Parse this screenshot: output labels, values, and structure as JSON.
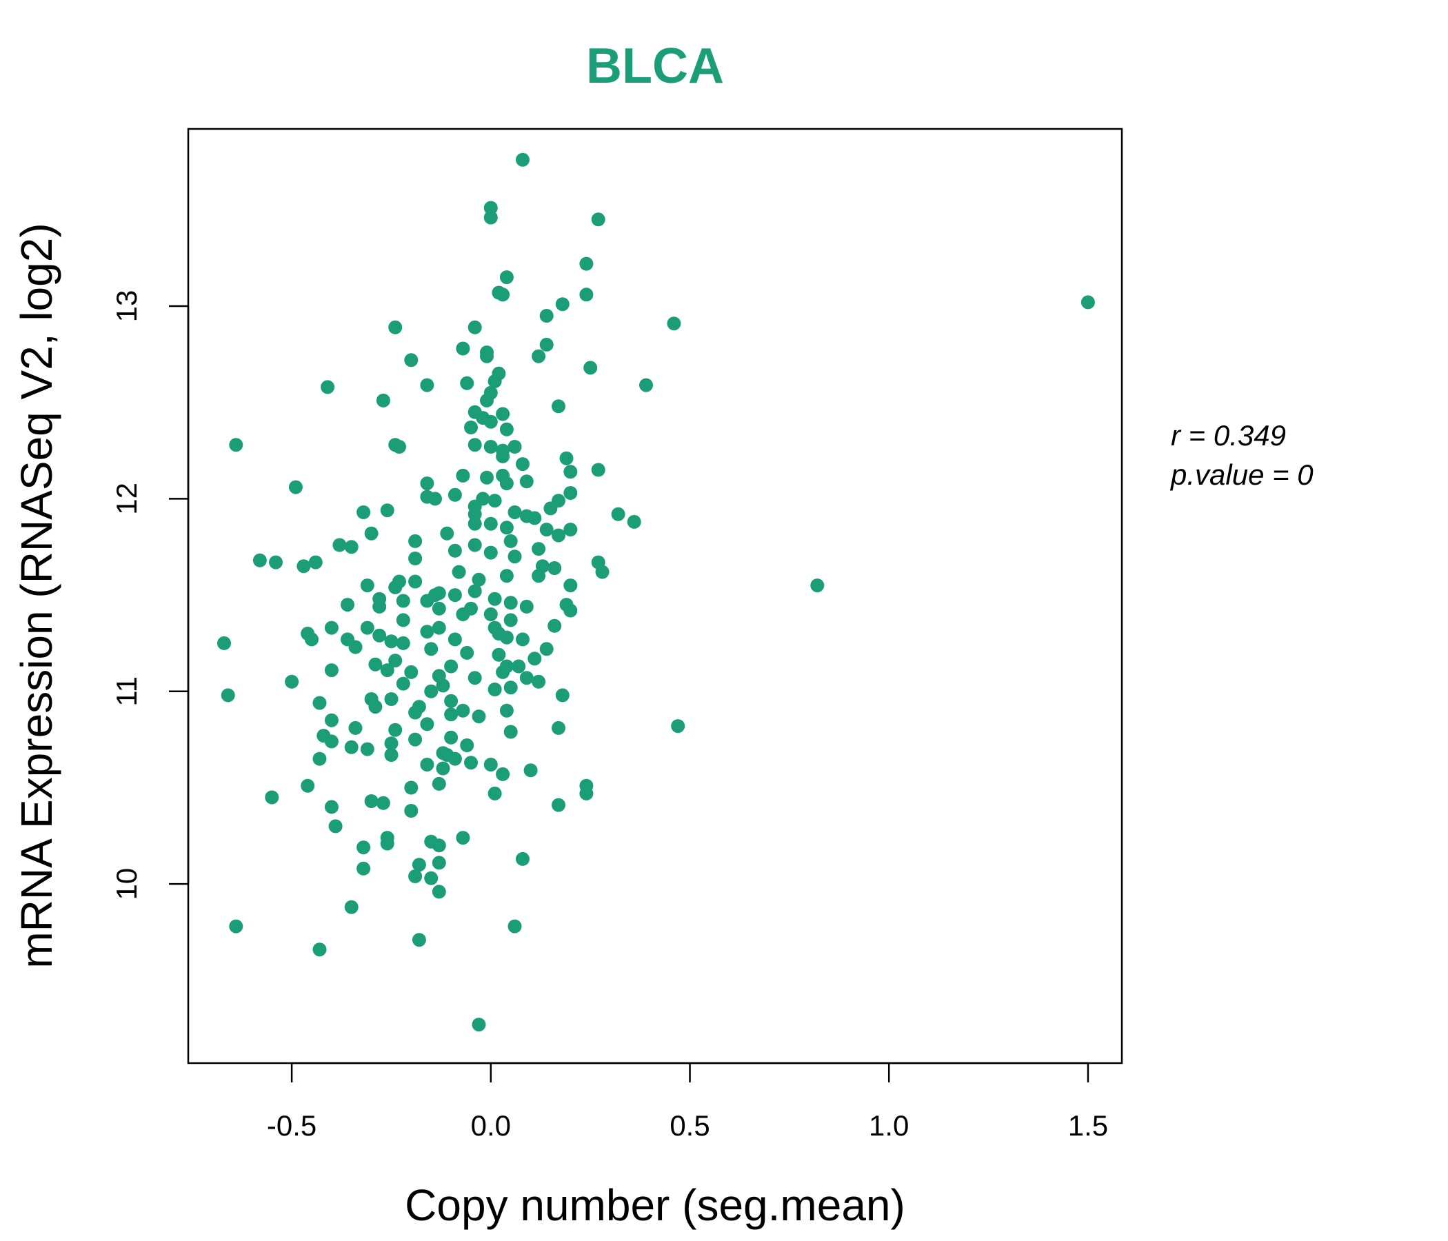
{
  "colors": {
    "accent": "#1b9e77",
    "axis": "#000000"
  },
  "stats": {
    "r_line": "r = 0.349",
    "p_line": "p.value = 0"
  },
  "chart_data": {
    "type": "scatter",
    "title": "BLCA",
    "xlabel": "Copy number (seg.mean)",
    "ylabel": "mRNA Expression (RNASeq V2, log2)",
    "xlim": [
      -0.76,
      1.585
    ],
    "ylim": [
      9.07,
      13.92
    ],
    "xticks": [
      -0.5,
      0.0,
      0.5,
      1.0,
      1.5
    ],
    "xtick_labels": [
      "-0.5",
      "0.0",
      "0.5",
      "1.0",
      "1.5"
    ],
    "yticks": [
      10,
      11,
      12,
      13
    ],
    "ytick_labels": [
      "10",
      "11",
      "12",
      "13"
    ],
    "grid": false,
    "legend": "none",
    "points": [
      [
        0.08,
        13.76
      ],
      [
        0.0,
        13.51
      ],
      [
        0.0,
        13.46
      ],
      [
        0.27,
        13.45
      ],
      [
        0.24,
        13.22
      ],
      [
        0.04,
        13.15
      ],
      [
        0.03,
        13.06
      ],
      [
        0.02,
        13.07
      ],
      [
        0.24,
        13.06
      ],
      [
        0.18,
        13.01
      ],
      [
        0.14,
        12.95
      ],
      [
        1.5,
        13.02
      ],
      [
        0.46,
        12.91
      ],
      [
        -0.24,
        12.89
      ],
      [
        -0.04,
        12.89
      ],
      [
        0.14,
        12.8
      ],
      [
        -0.07,
        12.78
      ],
      [
        -0.01,
        12.76
      ],
      [
        -0.01,
        12.74
      ],
      [
        0.12,
        12.74
      ],
      [
        -0.2,
        12.72
      ],
      [
        0.25,
        12.68
      ],
      [
        0.02,
        12.65
      ],
      [
        0.01,
        12.61
      ],
      [
        -0.06,
        12.6
      ],
      [
        0.39,
        12.59
      ],
      [
        -0.16,
        12.59
      ],
      [
        -0.41,
        12.58
      ],
      [
        0.0,
        12.55
      ],
      [
        -0.27,
        12.51
      ],
      [
        -0.01,
        12.51
      ],
      [
        0.17,
        12.48
      ],
      [
        -0.04,
        12.45
      ],
      [
        0.03,
        12.44
      ],
      [
        -0.02,
        12.42
      ],
      [
        0.0,
        12.4
      ],
      [
        -0.05,
        12.37
      ],
      [
        0.04,
        12.36
      ],
      [
        -0.64,
        12.28
      ],
      [
        -0.24,
        12.28
      ],
      [
        -0.23,
        12.27
      ],
      [
        -0.04,
        12.28
      ],
      [
        0.0,
        12.27
      ],
      [
        0.03,
        12.25
      ],
      [
        0.06,
        12.27
      ],
      [
        0.03,
        12.22
      ],
      [
        0.19,
        12.21
      ],
      [
        0.08,
        12.18
      ],
      [
        0.27,
        12.15
      ],
      [
        0.2,
        12.14
      ],
      [
        -0.07,
        12.12
      ],
      [
        -0.01,
        12.11
      ],
      [
        0.03,
        12.12
      ],
      [
        0.04,
        12.08
      ],
      [
        0.09,
        12.09
      ],
      [
        -0.16,
        12.08
      ],
      [
        -0.49,
        12.06
      ],
      [
        -0.09,
        12.02
      ],
      [
        -0.16,
        12.01
      ],
      [
        -0.14,
        12.0
      ],
      [
        -0.02,
        12.0
      ],
      [
        0.01,
        11.99
      ],
      [
        0.17,
        11.99
      ],
      [
        -0.04,
        11.96
      ],
      [
        0.15,
        11.95
      ],
      [
        0.2,
        12.03
      ],
      [
        -0.32,
        11.93
      ],
      [
        -0.26,
        11.94
      ],
      [
        0.32,
        11.92
      ],
      [
        -0.04,
        11.92
      ],
      [
        0.06,
        11.93
      ],
      [
        0.09,
        11.91
      ],
      [
        0.11,
        11.9
      ],
      [
        0.36,
        11.88
      ],
      [
        -0.04,
        11.87
      ],
      [
        0.0,
        11.87
      ],
      [
        0.04,
        11.85
      ],
      [
        0.14,
        11.84
      ],
      [
        0.2,
        11.84
      ],
      [
        -0.3,
        11.82
      ],
      [
        -0.11,
        11.82
      ],
      [
        0.17,
        11.81
      ],
      [
        -0.19,
        11.78
      ],
      [
        -0.38,
        11.76
      ],
      [
        -0.35,
        11.75
      ],
      [
        -0.04,
        11.76
      ],
      [
        0.05,
        11.78
      ],
      [
        0.12,
        11.74
      ],
      [
        -0.09,
        11.73
      ],
      [
        0.0,
        11.72
      ],
      [
        0.06,
        11.7
      ],
      [
        -0.19,
        11.69
      ],
      [
        -0.58,
        11.68
      ],
      [
        0.27,
        11.67
      ],
      [
        -0.44,
        11.67
      ],
      [
        -0.54,
        11.67
      ],
      [
        -0.47,
        11.65
      ],
      [
        0.13,
        11.65
      ],
      [
        0.16,
        11.64
      ],
      [
        0.28,
        11.62
      ],
      [
        -0.08,
        11.62
      ],
      [
        0.04,
        11.6
      ],
      [
        0.12,
        11.6
      ],
      [
        -0.03,
        11.58
      ],
      [
        -0.23,
        11.57
      ],
      [
        -0.19,
        11.57
      ],
      [
        -0.31,
        11.55
      ],
      [
        0.82,
        11.55
      ],
      [
        0.2,
        11.55
      ],
      [
        -0.24,
        11.54
      ],
      [
        -0.04,
        11.52
      ],
      [
        -0.13,
        11.51
      ],
      [
        -0.14,
        11.5
      ],
      [
        -0.09,
        11.5
      ],
      [
        -0.28,
        11.48
      ],
      [
        -0.22,
        11.47
      ],
      [
        -0.16,
        11.47
      ],
      [
        0.01,
        11.48
      ],
      [
        0.05,
        11.46
      ],
      [
        -0.36,
        11.45
      ],
      [
        -0.28,
        11.44
      ],
      [
        0.09,
        11.44
      ],
      [
        0.19,
        11.45
      ],
      [
        -0.13,
        11.43
      ],
      [
        -0.05,
        11.43
      ],
      [
        0.2,
        11.42
      ],
      [
        -0.07,
        11.4
      ],
      [
        0.0,
        11.4
      ],
      [
        0.05,
        11.37
      ],
      [
        -0.22,
        11.37
      ],
      [
        -0.4,
        11.33
      ],
      [
        0.16,
        11.34
      ],
      [
        -0.13,
        11.33
      ],
      [
        0.01,
        11.33
      ],
      [
        -0.31,
        11.33
      ],
      [
        -0.46,
        11.3
      ],
      [
        -0.16,
        11.31
      ],
      [
        -0.28,
        11.29
      ],
      [
        0.02,
        11.3
      ],
      [
        0.04,
        11.28
      ],
      [
        -0.45,
        11.27
      ],
      [
        -0.36,
        11.27
      ],
      [
        -0.25,
        11.26
      ],
      [
        -0.22,
        11.25
      ],
      [
        -0.09,
        11.27
      ],
      [
        0.08,
        11.27
      ],
      [
        -0.67,
        11.25
      ],
      [
        -0.34,
        11.23
      ],
      [
        0.14,
        11.22
      ],
      [
        -0.15,
        11.22
      ],
      [
        -0.06,
        11.2
      ],
      [
        0.02,
        11.19
      ],
      [
        0.11,
        11.17
      ],
      [
        -0.24,
        11.16
      ],
      [
        -0.29,
        11.14
      ],
      [
        -0.1,
        11.13
      ],
      [
        0.04,
        11.13
      ],
      [
        0.07,
        11.13
      ],
      [
        -0.26,
        11.11
      ],
      [
        -0.4,
        11.11
      ],
      [
        -0.2,
        11.1
      ],
      [
        0.03,
        11.1
      ],
      [
        -0.13,
        11.08
      ],
      [
        -0.04,
        11.07
      ],
      [
        0.09,
        11.07
      ],
      [
        0.12,
        11.05
      ],
      [
        -0.22,
        11.04
      ],
      [
        -0.5,
        11.05
      ],
      [
        -0.12,
        11.03
      ],
      [
        0.05,
        11.02
      ],
      [
        0.01,
        11.01
      ],
      [
        -0.15,
        11.0
      ],
      [
        0.18,
        10.98
      ],
      [
        -0.66,
        10.98
      ],
      [
        -0.3,
        10.96
      ],
      [
        -0.25,
        10.96
      ],
      [
        -0.1,
        10.95
      ],
      [
        -0.43,
        10.94
      ],
      [
        -0.18,
        10.92
      ],
      [
        -0.29,
        10.92
      ],
      [
        -0.07,
        10.9
      ],
      [
        0.04,
        10.9
      ],
      [
        -0.19,
        10.89
      ],
      [
        -0.1,
        10.88
      ],
      [
        -0.03,
        10.87
      ],
      [
        -0.4,
        10.85
      ],
      [
        -0.16,
        10.83
      ],
      [
        0.47,
        10.82
      ],
      [
        0.17,
        10.81
      ],
      [
        -0.34,
        10.81
      ],
      [
        -0.24,
        10.8
      ],
      [
        0.05,
        10.79
      ],
      [
        -0.42,
        10.77
      ],
      [
        -0.1,
        10.76
      ],
      [
        -0.19,
        10.75
      ],
      [
        -0.4,
        10.74
      ],
      [
        -0.25,
        10.73
      ],
      [
        -0.06,
        10.72
      ],
      [
        -0.35,
        10.71
      ],
      [
        -0.31,
        10.7
      ],
      [
        -0.12,
        10.68
      ],
      [
        -0.25,
        10.67
      ],
      [
        -0.11,
        10.67
      ],
      [
        -0.09,
        10.65
      ],
      [
        -0.43,
        10.65
      ],
      [
        -0.05,
        10.63
      ],
      [
        0.0,
        10.62
      ],
      [
        -0.16,
        10.62
      ],
      [
        -0.12,
        10.6
      ],
      [
        0.1,
        10.59
      ],
      [
        0.03,
        10.57
      ],
      [
        -0.13,
        10.52
      ],
      [
        -0.46,
        10.51
      ],
      [
        -0.2,
        10.5
      ],
      [
        0.24,
        10.51
      ],
      [
        0.24,
        10.47
      ],
      [
        0.01,
        10.47
      ],
      [
        -0.55,
        10.45
      ],
      [
        -0.3,
        10.43
      ],
      [
        -0.27,
        10.42
      ],
      [
        0.17,
        10.41
      ],
      [
        -0.4,
        10.4
      ],
      [
        -0.2,
        10.38
      ],
      [
        -0.39,
        10.3
      ],
      [
        -0.07,
        10.24
      ],
      [
        -0.26,
        10.24
      ],
      [
        -0.15,
        10.22
      ],
      [
        -0.26,
        10.21
      ],
      [
        -0.13,
        10.2
      ],
      [
        -0.32,
        10.19
      ],
      [
        0.08,
        10.13
      ],
      [
        -0.13,
        10.11
      ],
      [
        -0.18,
        10.1
      ],
      [
        -0.32,
        10.08
      ],
      [
        -0.19,
        10.04
      ],
      [
        -0.15,
        10.03
      ],
      [
        -0.13,
        9.96
      ],
      [
        -0.35,
        9.88
      ],
      [
        -0.64,
        9.78
      ],
      [
        0.06,
        9.78
      ],
      [
        -0.18,
        9.71
      ],
      [
        -0.43,
        9.66
      ],
      [
        -0.03,
        9.27
      ]
    ]
  }
}
